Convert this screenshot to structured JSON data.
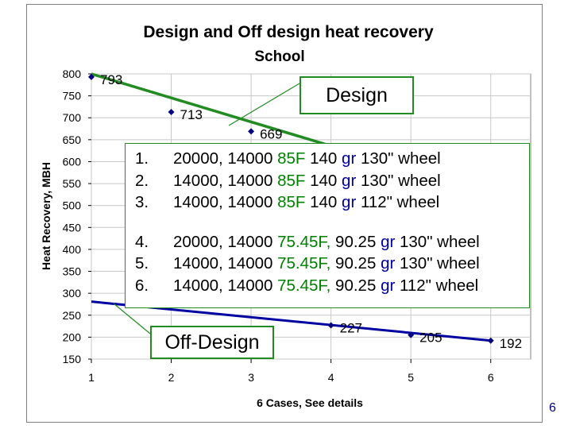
{
  "chart_data": {
    "type": "line",
    "title": "Design and Off design heat recovery",
    "subtitle": "School",
    "xlabel": "6 Cases, See details",
    "ylabel": "Heat Recovery, MBH",
    "x": [
      1,
      2,
      3,
      4,
      5,
      6
    ],
    "xticks": [
      "1",
      "2",
      "3",
      "4",
      "5",
      "6"
    ],
    "xlim": [
      1,
      6.5
    ],
    "ylim": [
      150,
      800
    ],
    "yticks": [
      "150",
      "200",
      "250",
      "300",
      "350",
      "400",
      "450",
      "500",
      "550",
      "600",
      "650",
      "700",
      "750",
      "800"
    ],
    "grid": true,
    "series": [
      {
        "values": [
          793,
          713,
          669,
          null,
          null,
          null
        ],
        "labels": [
          "793",
          "713",
          "669",
          "",
          "",
          ""
        ],
        "color": "#000080"
      },
      {
        "values": [
          null,
          null,
          null,
          227,
          205,
          192
        ],
        "labels": [
          "",
          "",
          "",
          "227",
          "205",
          "192"
        ],
        "color": "#000080"
      }
    ],
    "trendlines": [
      {
        "from": [
          1,
          800
        ],
        "to": [
          6.3,
          510
        ],
        "color": "#228b22"
      },
      {
        "from": [
          1,
          281
        ],
        "to": [
          6,
          192
        ],
        "color": "#0000a0"
      }
    ]
  },
  "callouts": {
    "design": "Design",
    "off_design": "Off-Design",
    "line_color": "#228b22"
  },
  "cases": [
    {
      "num": "1.",
      "a": "20000, 14000 ",
      "b": "85F",
      "c": " 140 ",
      "d": "gr",
      "e": " 130\" wheel"
    },
    {
      "num": "2.",
      "a": "14000, 14000 ",
      "b": "85F",
      "c": " 140 ",
      "d": "gr",
      "e": " 130\" wheel"
    },
    {
      "num": "3.",
      "a": "14000, 14000 ",
      "b": "85F",
      "c": " 140 ",
      "d": "gr",
      "e": " 112\" wheel"
    },
    {
      "num": "4.",
      "a": "20000, 14000 ",
      "b": "75.45F,",
      "c": " 90.25 ",
      "d": "gr",
      "e": " 130\" wheel"
    },
    {
      "num": "5.",
      "a": "14000, 14000 ",
      "b": "75.45F,",
      "c": " 90.25 ",
      "d": "gr",
      "e": " 130\" wheel"
    },
    {
      "num": "6.",
      "a": "14000, 14000 ",
      "b": "75.45F,",
      "c": " 90.25 ",
      "d": "gr",
      "e": " 112\" wheel"
    }
  ],
  "page_number": "6"
}
